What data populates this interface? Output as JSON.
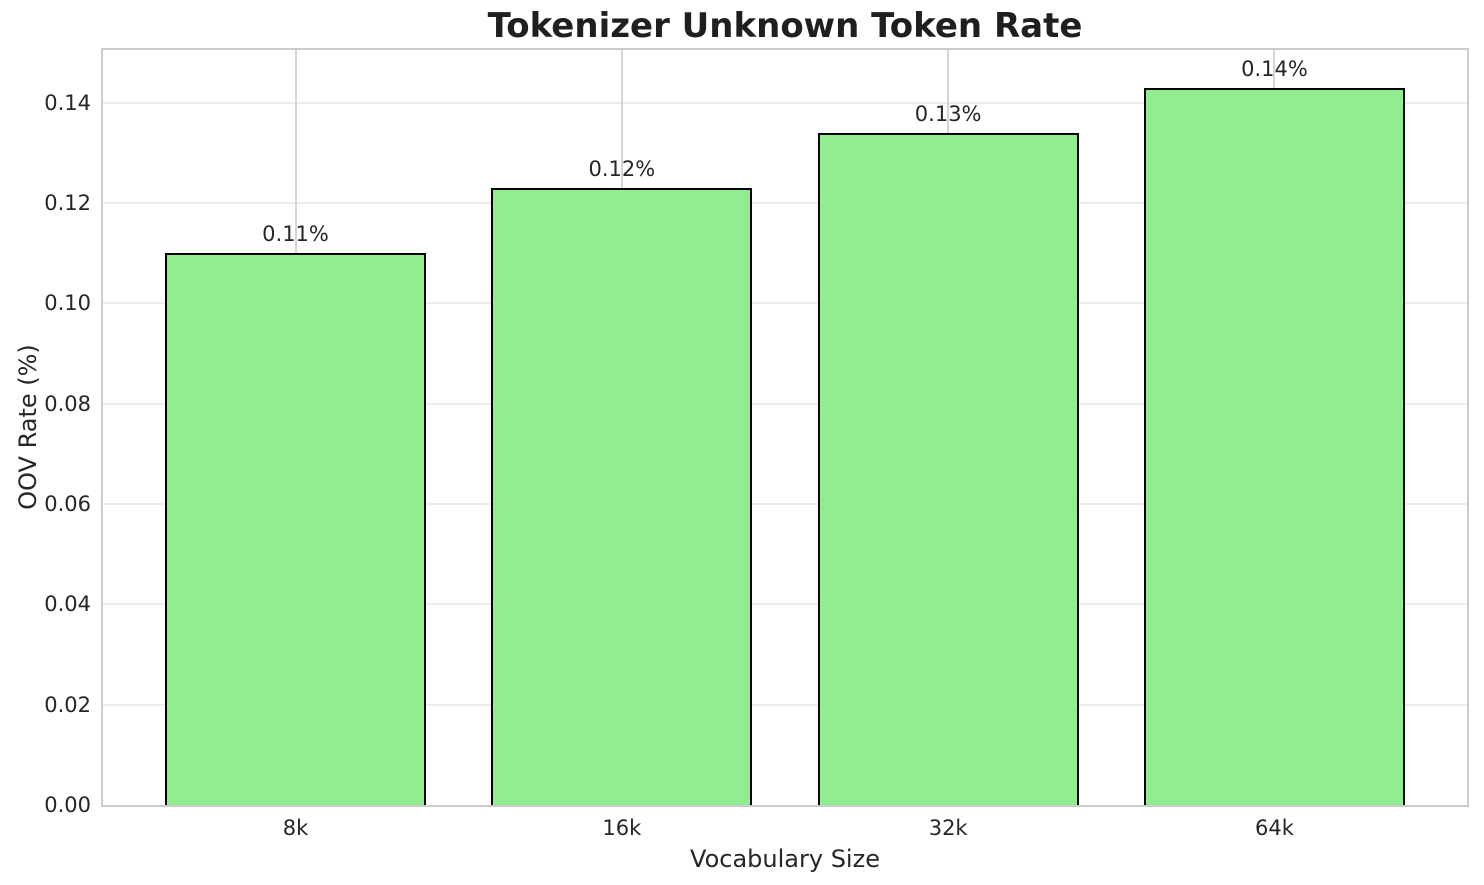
{
  "chart_data": {
    "type": "bar",
    "title": "Tokenizer Unknown Token Rate",
    "xlabel": "Vocabulary Size",
    "ylabel": "OOV Rate (%)",
    "categories": [
      "8k",
      "16k",
      "32k",
      "64k"
    ],
    "values": [
      0.11,
      0.123,
      0.134,
      0.143
    ],
    "bar_labels": [
      "0.11%",
      "0.12%",
      "0.13%",
      "0.14%"
    ],
    "ytick_values": [
      0.0,
      0.02,
      0.04,
      0.06,
      0.08,
      0.1,
      0.12,
      0.14
    ],
    "ytick_labels": [
      "0.00",
      "0.02",
      "0.04",
      "0.06",
      "0.08",
      "0.10",
      "0.12",
      "0.14"
    ],
    "ylim": [
      0,
      0.1505
    ],
    "grid": {
      "horizontal": true,
      "vertical": true
    },
    "colors": {
      "bar_fill": "#90ee90",
      "bar_edge": "#000000",
      "grid_horizontal": "#ececec",
      "grid_vertical": "#d5d5d5",
      "spine": "#cccccc",
      "text": "#262626",
      "title_text": "#1f1f1f"
    }
  }
}
